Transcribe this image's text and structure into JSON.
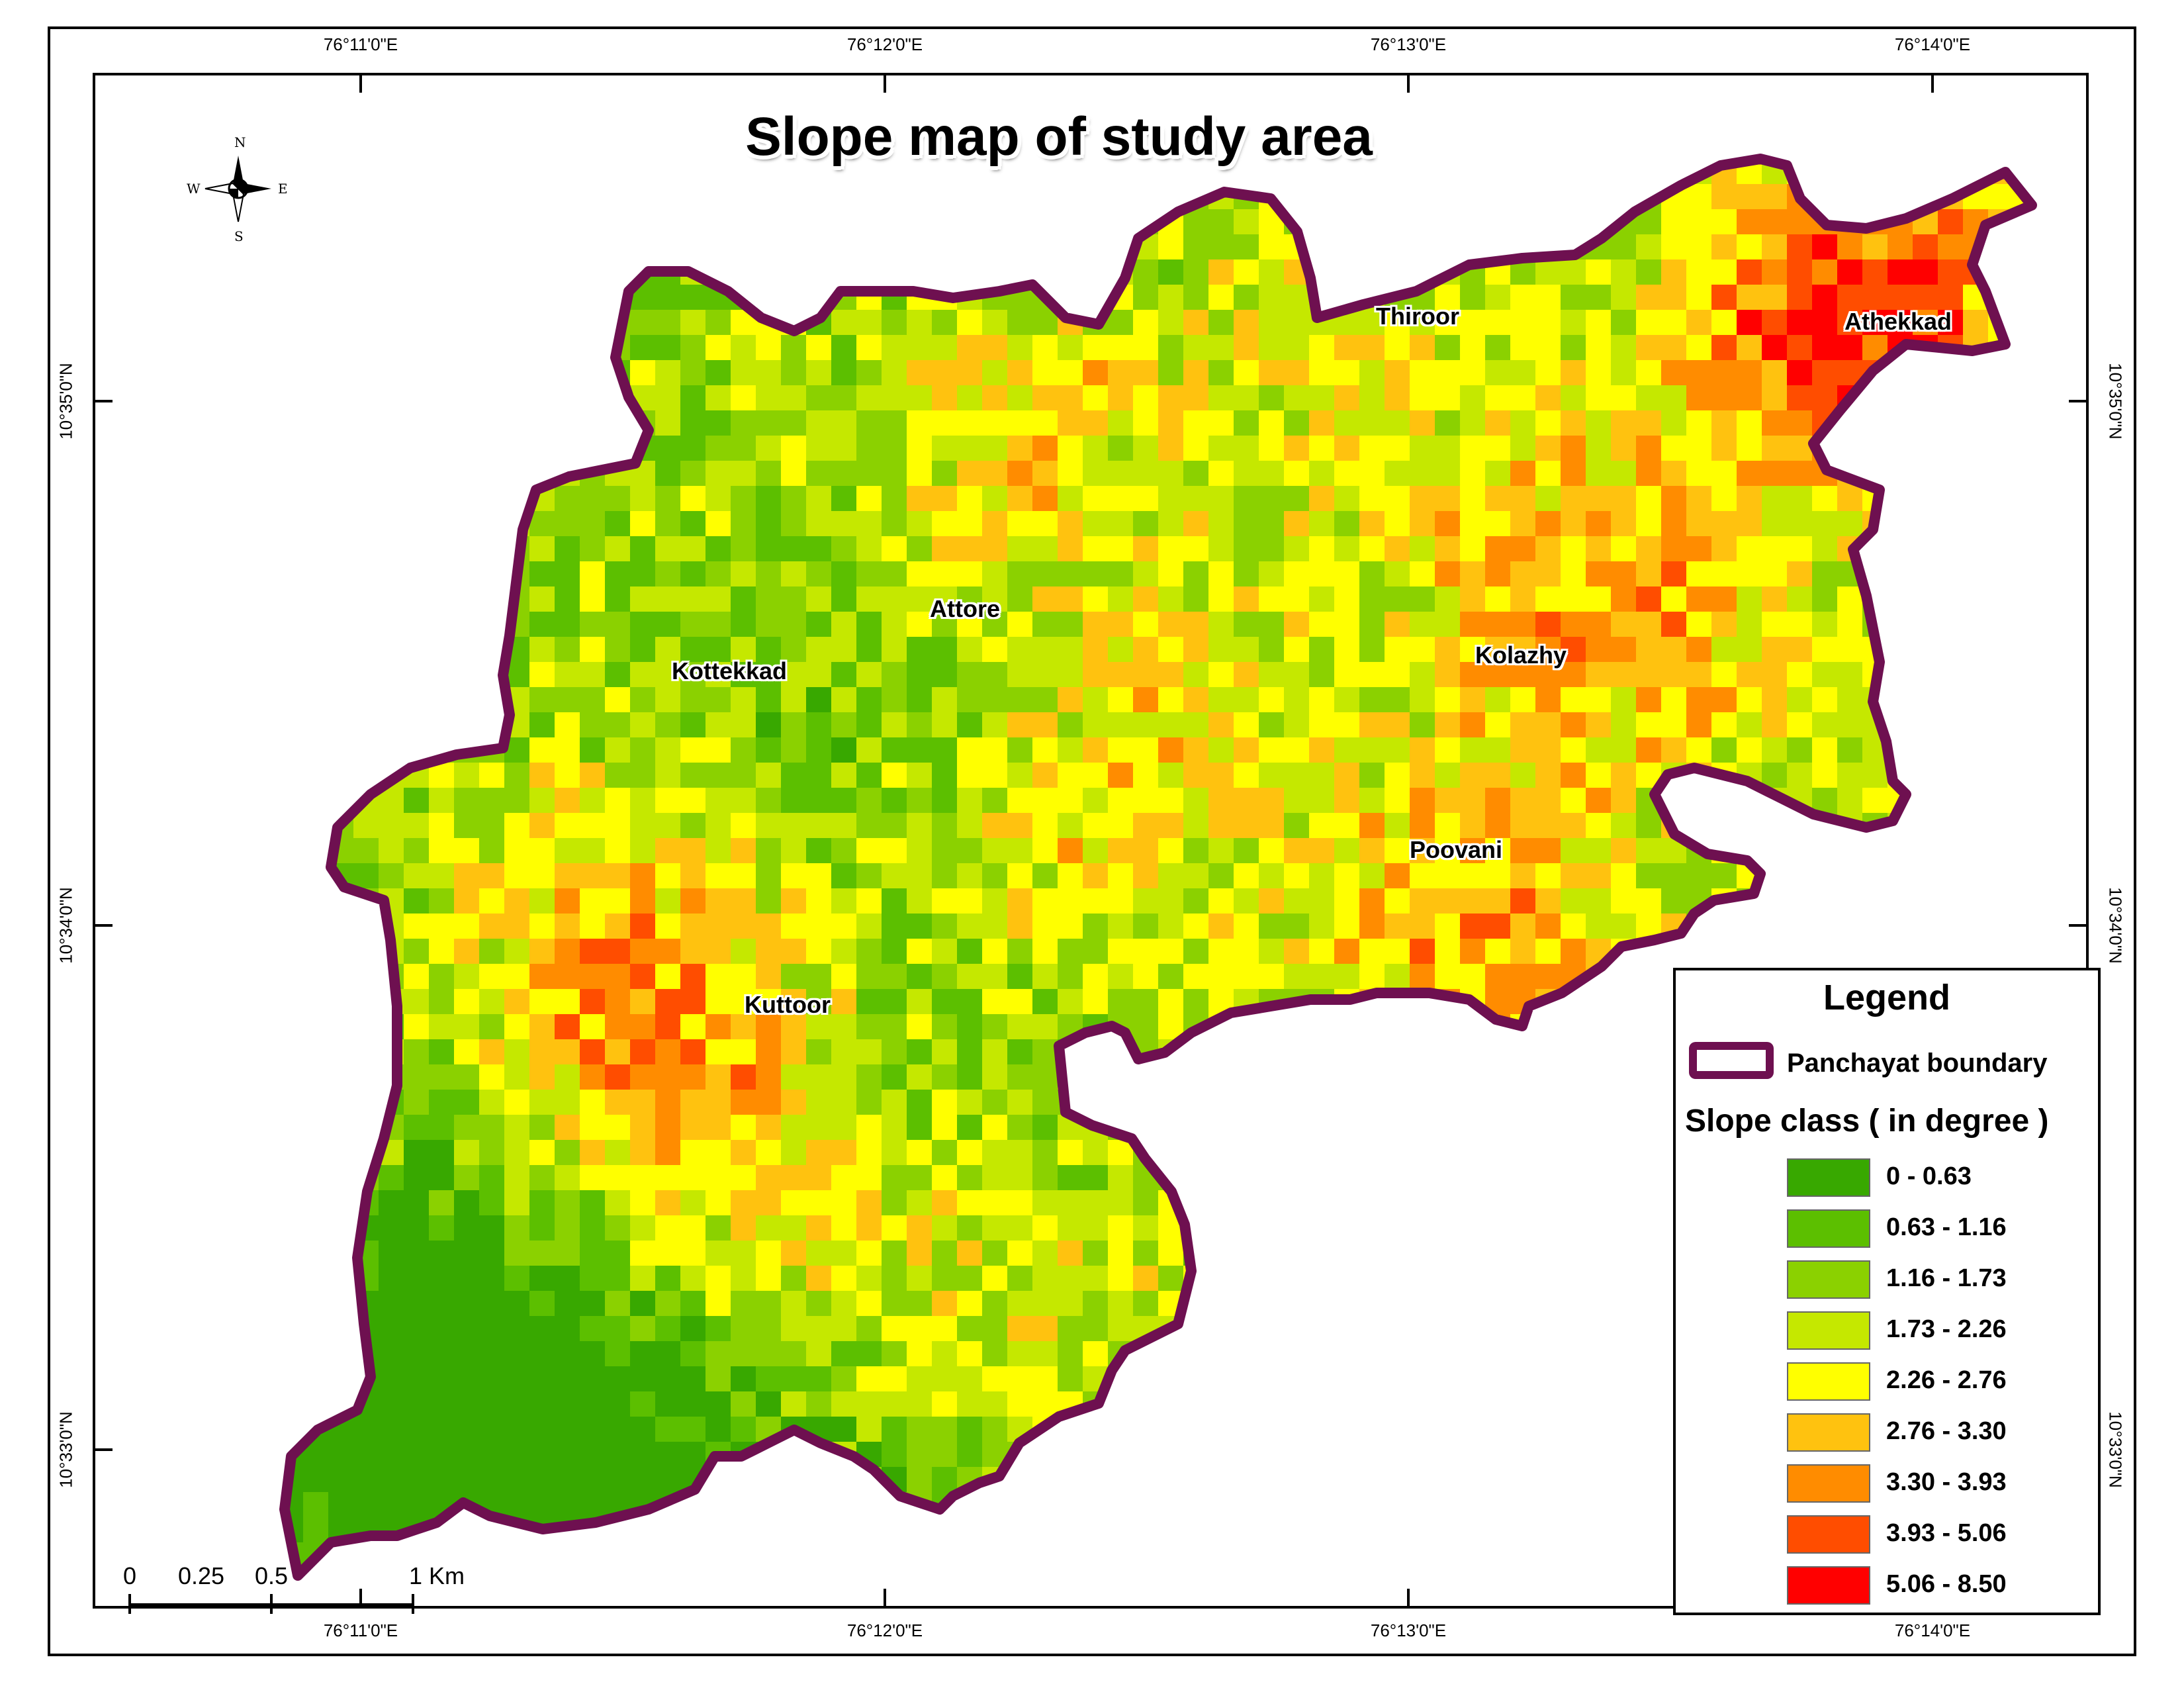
{
  "title": "Slope map of study area",
  "graticule": {
    "longitudes": [
      "76°11'0\"E",
      "76°12'0\"E",
      "76°13'0\"E",
      "76°14'0\"E"
    ],
    "latitudes": [
      "10°35'0\"N",
      "10°34'0\"N",
      "10°33'0\"N"
    ]
  },
  "north_arrow": {
    "n": "N",
    "s": "S",
    "e": "E",
    "w": "W"
  },
  "places": [
    "Thiroor",
    "Athekkad",
    "Attore",
    "Kottekkad",
    "Kolazhy",
    "Poovani",
    "Kuttoor"
  ],
  "legend": {
    "title": "Legend",
    "boundary_label": "Panchayat boundary",
    "boundary_color": "#6e1050",
    "slope_title": "Slope class ( in degree  )",
    "classes": [
      {
        "label": "0 - 0.63",
        "color": "#38a800"
      },
      {
        "label": "0.63 - 1.16",
        "color": "#5cbf00"
      },
      {
        "label": "1.16 - 1.73",
        "color": "#8bd100"
      },
      {
        "label": "1.73 - 2.26",
        "color": "#c5e800"
      },
      {
        "label": "2.26 - 2.76",
        "color": "#ffff00"
      },
      {
        "label": "2.76 - 3.30",
        "color": "#ffc20f"
      },
      {
        "label": "3.30 - 3.93",
        "color": "#ff8c00"
      },
      {
        "label": "3.93 - 5.06",
        "color": "#ff4d00"
      },
      {
        "label": "5.06 - 8.50",
        "color": "#ff0000"
      }
    ]
  },
  "scale_bar": {
    "labels": [
      "0",
      "0.25",
      "0.5",
      "1 Km"
    ]
  }
}
